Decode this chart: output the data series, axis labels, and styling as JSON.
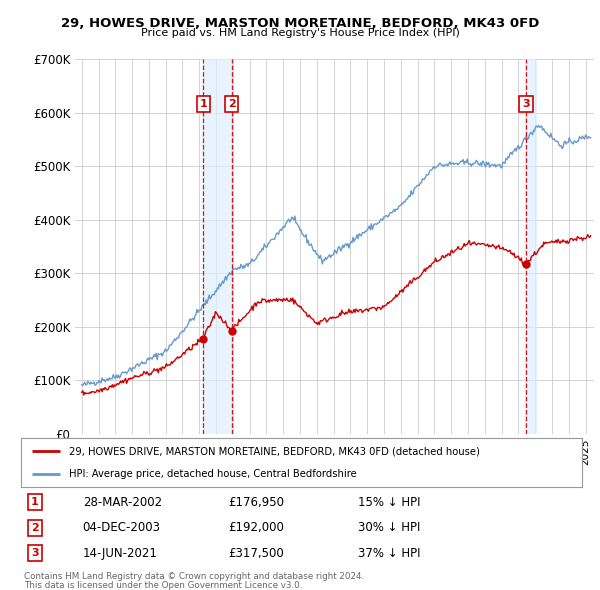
{
  "title": "29, HOWES DRIVE, MARSTON MORETAINE, BEDFORD, MK43 0FD",
  "subtitle": "Price paid vs. HM Land Registry's House Price Index (HPI)",
  "ylim": [
    0,
    700000
  ],
  "yticks": [
    0,
    100000,
    200000,
    300000,
    400000,
    500000,
    600000,
    700000
  ],
  "ytick_labels": [
    "£0",
    "£100K",
    "£200K",
    "£300K",
    "£400K",
    "£500K",
    "£600K",
    "£700K"
  ],
  "xlim_start": 1994.6,
  "xlim_end": 2025.5,
  "background_color": "#ffffff",
  "grid_color": "#cccccc",
  "hpi_color": "#6699cc",
  "hpi_fill_color": "#ddeeff",
  "property_color": "#cc0000",
  "transactions": [
    {
      "id": 1,
      "date": "28-MAR-2002",
      "price": 176950,
      "pct": "15%",
      "year": 2002.23
    },
    {
      "id": 2,
      "date": "04-DEC-2003",
      "price": 192000,
      "pct": "30%",
      "year": 2003.92
    },
    {
      "id": 3,
      "date": "14-JUN-2021",
      "price": 317500,
      "pct": "37%",
      "year": 2021.45
    }
  ],
  "legend_property": "29, HOWES DRIVE, MARSTON MORETAINE, BEDFORD, MK43 0FD (detached house)",
  "legend_hpi": "HPI: Average price, detached house, Central Bedfordshire",
  "footer1": "Contains HM Land Registry data © Crown copyright and database right 2024.",
  "footer2": "This data is licensed under the Open Government Licence v3.0."
}
